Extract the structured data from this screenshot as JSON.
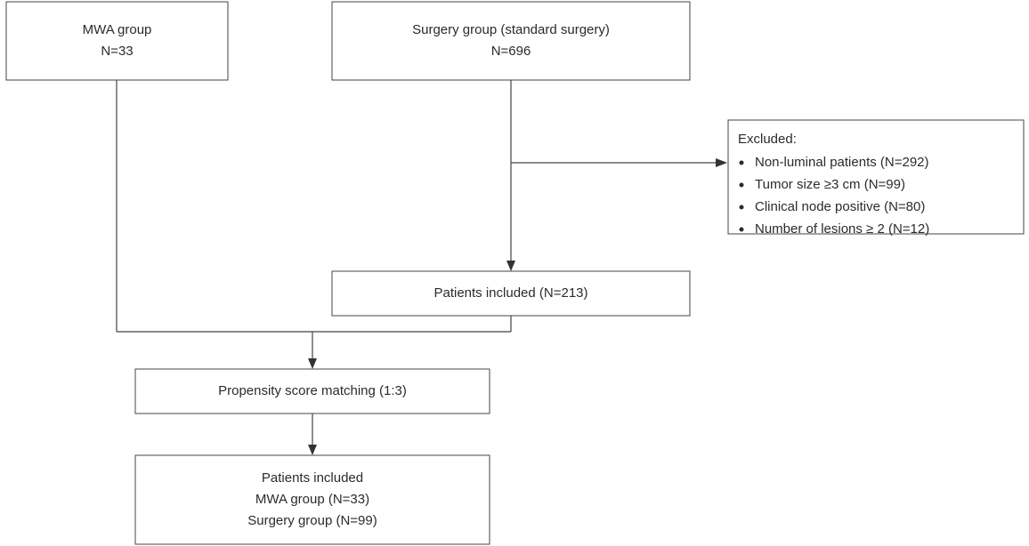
{
  "nodes": [
    {
      "lines": [
        "MWA group",
        "N=33"
      ]
    },
    {
      "lines": [
        "Surgery group (standard surgery)",
        "N=696"
      ]
    },
    {
      "title": "Excluded:",
      "items": [
        "Non-luminal patients (N=292)",
        "Tumor size ≥3 cm (N=99)",
        "Clinical node positive (N=80)",
        "Number of lesions ≥ 2 (N=12)"
      ]
    },
    {
      "lines": [
        "Patients included (N=213)"
      ]
    },
    {
      "lines": [
        "Propensity score matching (1:3)"
      ]
    },
    {
      "lines": [
        "Patients included",
        "MWA group (N=33)",
        "Surgery group (N=99)"
      ]
    }
  ]
}
